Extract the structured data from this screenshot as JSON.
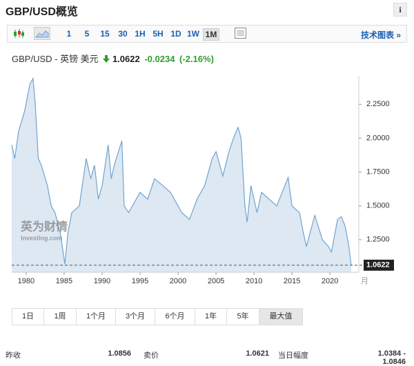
{
  "header": {
    "title": "GBP/USD概览",
    "info": "i"
  },
  "toolbar": {
    "intervals": [
      "1",
      "5",
      "15",
      "30",
      "1H",
      "5H",
      "1D",
      "1W",
      "1M"
    ],
    "technical_chart": "技术图表 »"
  },
  "quote": {
    "name": "GBP/USD - 英镑 美元",
    "price": "1.0622",
    "change": "-0.0234",
    "change_pct": "(-2.16%)"
  },
  "chart_data": {
    "type": "area",
    "x": [
      1978.1,
      1978.5,
      1979.0,
      1979.8,
      1980.5,
      1980.9,
      1981.2,
      1981.6,
      1982.0,
      1982.8,
      1983.3,
      1983.8,
      1984.5,
      1985.1,
      1985.5,
      1986.0,
      1987.0,
      1987.9,
      1988.5,
      1989.0,
      1989.5,
      1990.0,
      1990.8,
      1991.2,
      1991.6,
      1992.6,
      1992.9,
      1993.5,
      1994.0,
      1995.0,
      1996.0,
      1996.9,
      1998.0,
      1999.0,
      2000.5,
      2001.5,
      2002.5,
      2003.5,
      2004.5,
      2005.0,
      2005.9,
      2006.7,
      2007.3,
      2007.9,
      2008.3,
      2008.8,
      2009.1,
      2009.6,
      2010.4,
      2011.0,
      2012.0,
      2013.0,
      2014.5,
      2015.0,
      2016.0,
      2016.5,
      2016.9,
      2018.0,
      2019.0,
      2019.8,
      2020.2,
      2021.0,
      2021.5,
      2022.0,
      2022.5,
      2022.8
    ],
    "values": [
      1.95,
      1.85,
      2.05,
      2.2,
      2.4,
      2.44,
      2.25,
      1.85,
      1.8,
      1.65,
      1.5,
      1.45,
      1.3,
      1.07,
      1.3,
      1.45,
      1.5,
      1.85,
      1.7,
      1.8,
      1.55,
      1.65,
      1.95,
      1.7,
      1.8,
      1.98,
      1.5,
      1.45,
      1.5,
      1.6,
      1.55,
      1.7,
      1.65,
      1.6,
      1.45,
      1.4,
      1.55,
      1.65,
      1.85,
      1.9,
      1.72,
      1.9,
      2.0,
      2.08,
      2.0,
      1.5,
      1.38,
      1.65,
      1.45,
      1.6,
      1.55,
      1.5,
      1.71,
      1.5,
      1.45,
      1.3,
      1.2,
      1.43,
      1.25,
      1.2,
      1.16,
      1.4,
      1.42,
      1.35,
      1.2,
      1.06
    ],
    "color": "#6fa3cf",
    "fill_color": "#dde8f3",
    "xlim": [
      1978.1,
      2023.8
    ],
    "ylim": [
      1.01,
      2.46
    ],
    "xticks": [
      1980,
      1985,
      1990,
      1995,
      2000,
      2005,
      2010,
      2015,
      2020
    ],
    "yticks": [
      {
        "value": 1.25,
        "label": "1.2500"
      },
      {
        "value": 1.5,
        "label": "1.5000"
      },
      {
        "value": 1.75,
        "label": "1.7500"
      },
      {
        "value": 2.0,
        "label": "2.0000"
      },
      {
        "value": 2.25,
        "label": "2.2500"
      }
    ],
    "current": 1.0622,
    "xlabel": "月",
    "watermark": "英为财情",
    "watermark_sub": "Investing.com"
  },
  "ranges": [
    "1日",
    "1周",
    "1个月",
    "3个月",
    "6个月",
    "1年",
    "5年",
    "最大值"
  ],
  "stats": [
    {
      "label": "昨收",
      "value": "1.0856"
    },
    {
      "label": "卖价",
      "value": "1.0621"
    },
    {
      "label": "当日幅度",
      "value": "1.0384 - 1.0846"
    }
  ]
}
